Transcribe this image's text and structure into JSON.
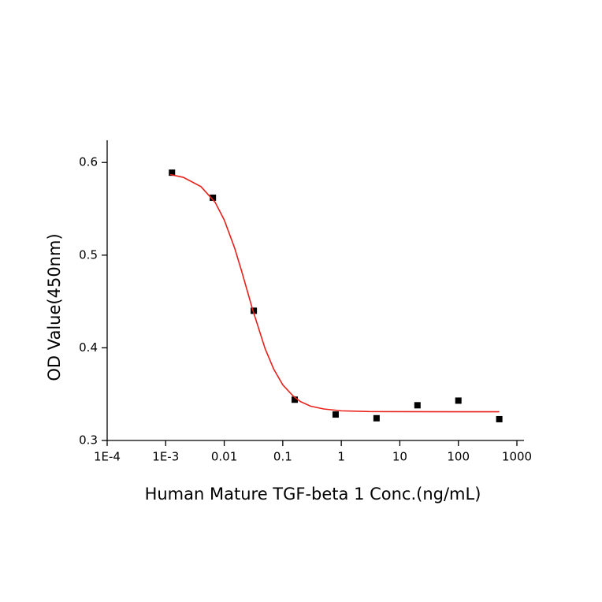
{
  "chart_data": {
    "type": "scatter",
    "x_label": "Human Mature TGF-beta 1 Conc.(ng/mL)",
    "y_label": "OD Value(450nm)",
    "x_scale": "log",
    "xlim": [
      0.0001,
      1000
    ],
    "xticks": [
      {
        "value": 0.0001,
        "label": "1E-4"
      },
      {
        "value": 0.001,
        "label": "1E-3"
      },
      0.01,
      0.1,
      1,
      10,
      100,
      1000
    ],
    "ylim": [
      0.3,
      0.624
    ],
    "yticks": [
      {
        "value": 0.3,
        "label": "0.3"
      },
      0.4,
      0.5,
      0.6
    ],
    "series": [
      {
        "style": "markers",
        "color": "#000000",
        "x": [
          0.00128,
          0.0064,
          0.032,
          0.16,
          0.8,
          4,
          20,
          100,
          500
        ],
        "values": [
          0.589,
          0.562,
          0.44,
          0.344,
          0.328,
          0.324,
          0.338,
          0.343,
          0.323
        ]
      },
      {
        "style": "line",
        "color": "#e8201a",
        "x": [
          0.0012,
          0.002,
          0.004,
          0.007,
          0.01,
          0.015,
          0.02,
          0.03,
          0.05,
          0.07,
          0.1,
          0.15,
          0.2,
          0.3,
          0.5,
          1,
          3,
          10,
          100,
          500
        ],
        "values": [
          0.587,
          0.584,
          0.574,
          0.557,
          0.538,
          0.508,
          0.482,
          0.443,
          0.399,
          0.377,
          0.36,
          0.348,
          0.342,
          0.337,
          0.334,
          0.332,
          0.3312,
          0.3311,
          0.331,
          0.331
        ]
      }
    ]
  }
}
